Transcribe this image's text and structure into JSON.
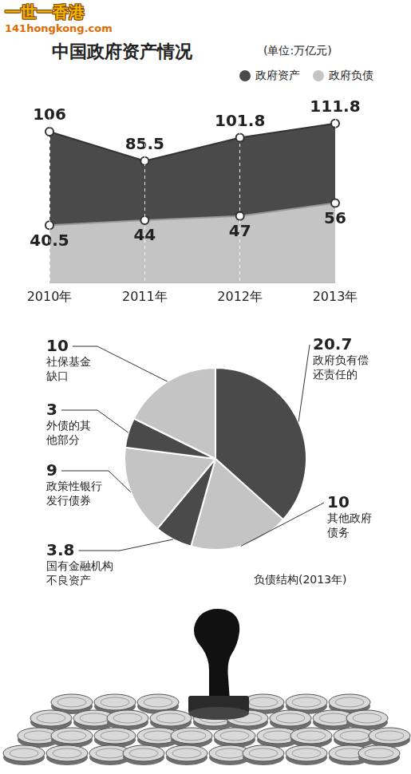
{
  "watermark": {
    "title": "一世一香港",
    "url": "141hongkong.com"
  },
  "chart_data": [
    {
      "type": "area",
      "title": "中国政府资产情况",
      "subtitle": "(单位:万亿元)",
      "categories": [
        "2010年",
        "2011年",
        "2012年",
        "2013年"
      ],
      "series": [
        {
          "name": "政府资产",
          "color": "#4a4a4a",
          "values": [
            106,
            85.5,
            101.8,
            111.8
          ]
        },
        {
          "name": "政府负债",
          "color": "#c4c4c4",
          "values": [
            40.5,
            44,
            47,
            56
          ]
        }
      ],
      "ylim": [
        0,
        120
      ],
      "grid": "x",
      "legend": "top right",
      "data_labels": true,
      "tick_labels": "x",
      "marker": "circle",
      "line_style": "solid"
    },
    {
      "type": "pie",
      "title": "负债结构(2013年)",
      "categories": [
        "政府负有偿还责任的",
        "其他政府债务",
        "国有金融机构不良资产",
        "政策性银行发行债券",
        "外债的其他部分",
        "社保基金缺口"
      ],
      "values": [
        20.7,
        10,
        3.8,
        9,
        3,
        10
      ],
      "colors": [
        "#4a4a4a",
        "#c4c4c4",
        "#4a4a4a",
        "#c4c4c4",
        "#4a4a4a",
        "#c4c4c4"
      ],
      "data_labels": true
    }
  ]
}
